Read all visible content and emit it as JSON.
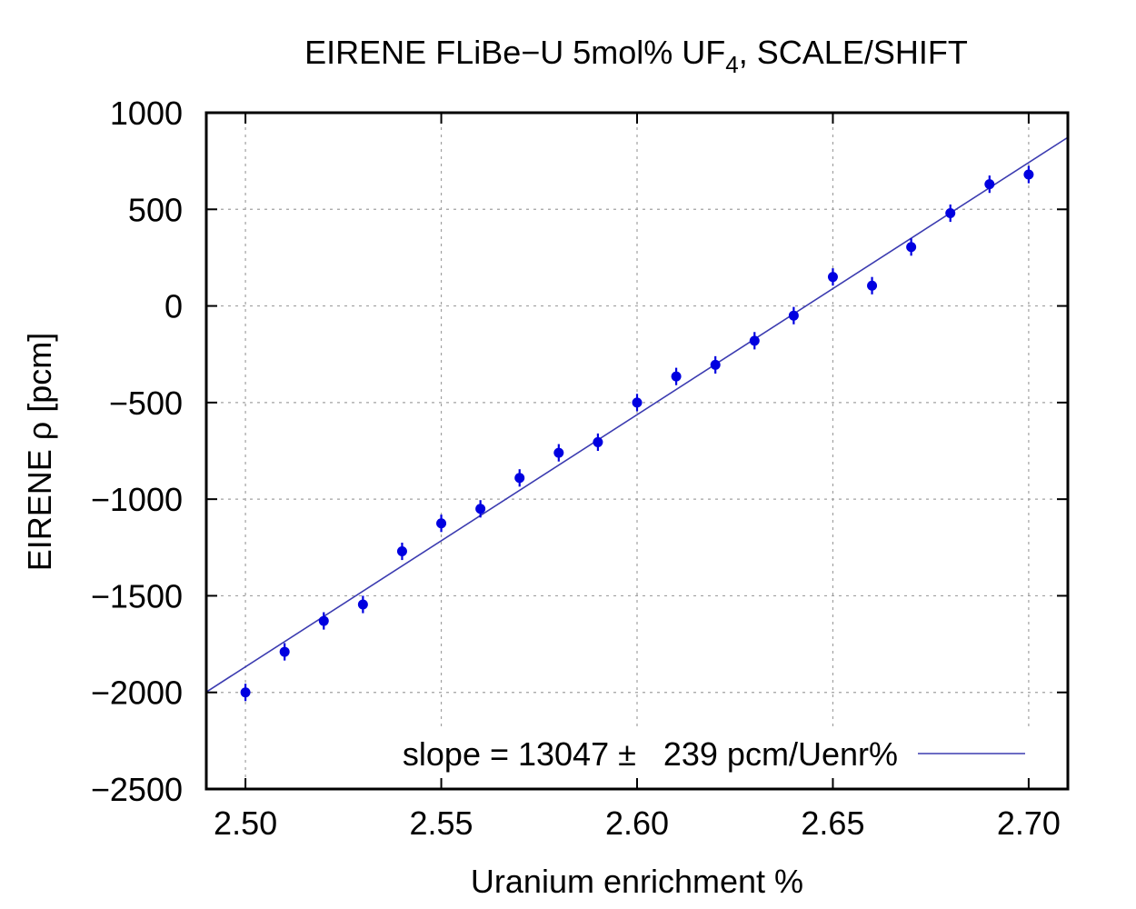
{
  "chart_data": {
    "type": "scatter",
    "title": "EIRENE FLiBe−U 5mol% UF",
    "title_subscript": "4",
    "title_suffix": ", SCALE/SHIFT",
    "xlabel": "Uranium enrichment %",
    "ylabel": "EIRENE ρ [pcm]",
    "xlim": [
      2.49,
      2.71
    ],
    "ylim": [
      -2500,
      1000
    ],
    "x_ticks": [
      2.5,
      2.55,
      2.6,
      2.65,
      2.7
    ],
    "x_tick_labels": [
      "2.50",
      "2.55",
      "2.60",
      "2.65",
      "2.70"
    ],
    "y_ticks": [
      1000,
      500,
      0,
      -500,
      -1000,
      -1500,
      -2000,
      -2500
    ],
    "y_tick_labels": [
      "1000",
      "500",
      "0",
      "−500",
      "−1000",
      "−1500",
      "−2000",
      "−2500"
    ],
    "grid": true,
    "legend_position": "bottom",
    "colors": {
      "points": "#0000e0",
      "fit_line": "#3b3bb0",
      "grid": "#a0a0a0",
      "frame": "#000000"
    },
    "series": [
      {
        "kind": "points_with_errorbars",
        "x": [
          2.5,
          2.51,
          2.52,
          2.53,
          2.54,
          2.55,
          2.56,
          2.57,
          2.58,
          2.59,
          2.6,
          2.61,
          2.62,
          2.63,
          2.64,
          2.65,
          2.66,
          2.67,
          2.68,
          2.69,
          2.7
        ],
        "y": [
          -2000,
          -1790,
          -1630,
          -1545,
          -1270,
          -1125,
          -1050,
          -890,
          -760,
          -705,
          -500,
          -365,
          -305,
          -180,
          -50,
          150,
          105,
          305,
          480,
          630,
          680
        ],
        "err": [
          45,
          45,
          45,
          45,
          45,
          45,
          45,
          45,
          45,
          45,
          45,
          45,
          45,
          45,
          45,
          45,
          45,
          45,
          45,
          45,
          45
        ]
      },
      {
        "kind": "fit_line",
        "name": "slope = 13047 ±   239 pcm/Uenr%",
        "slope": 13047,
        "intercept": -34485
      }
    ],
    "dashed_grid_extension_below_first_point": true
  }
}
